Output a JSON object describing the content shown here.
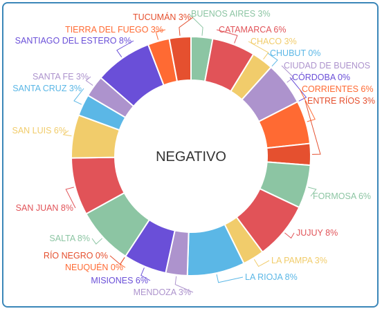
{
  "chart_data": {
    "type": "pie",
    "style": "donut",
    "center_label": "NEGATIVO",
    "start_angle_deg": 0,
    "slices": [
      {
        "name": "BUENOS AIRES",
        "value": 3,
        "label": "BUENOS AIRES 3%",
        "color": "#8cc5a3"
      },
      {
        "name": "CATAMARCA",
        "value": 6,
        "label": "CATAMARCA 6%",
        "color": "#e15358"
      },
      {
        "name": "CHACO",
        "value": 3,
        "label": "CHACO 3%",
        "color": "#f1cc6b"
      },
      {
        "name": "CHUBUT",
        "value": 0,
        "label": "CHUBUT 0%",
        "color": "#5bb7e6"
      },
      {
        "name": "CIUDAD DE BUENOS",
        "value": 6,
        "label": "CIUDAD DE BUENOS",
        "color": "#ad93cd"
      },
      {
        "name": "CÓRDOBA",
        "value": 0,
        "label": "CÓRDOBA 0%",
        "color": "#6a4fd8"
      },
      {
        "name": "CORRIENTES",
        "value": 6,
        "label": "CORRIENTES 6%",
        "color": "#ff6a33"
      },
      {
        "name": "ENTRE RÍOS",
        "value": 3,
        "label": "ENTRE RÍOS 3%",
        "color": "#e5502f"
      },
      {
        "name": "FORMOSA",
        "value": 6,
        "label": "FORMOSA 6%",
        "color": "#8cc5a3"
      },
      {
        "name": "JUJUY",
        "value": 8,
        "label": "JUJUY 8%",
        "color": "#e15358"
      },
      {
        "name": "LA PAMPA",
        "value": 3,
        "label": "LA PAMPA 3%",
        "color": "#f1cc6b"
      },
      {
        "name": "LA RIOJA",
        "value": 8,
        "label": "LA RIOJA 8%",
        "color": "#5bb7e6"
      },
      {
        "name": "MENDOZA",
        "value": 3,
        "label": "MENDOZA 3%",
        "color": "#ad93cd"
      },
      {
        "name": "MISIONES",
        "value": 6,
        "label": "MISIONES 6%",
        "color": "#6a4fd8"
      },
      {
        "name": "NEUQUÉN",
        "value": 0,
        "label": "NEUQUÉN 0%",
        "color": "#ff6a33"
      },
      {
        "name": "RÍO NEGRO",
        "value": 0,
        "label": "RÍO NEGRO 0%",
        "color": "#e5502f"
      },
      {
        "name": "SALTA",
        "value": 8,
        "label": "SALTA 8%",
        "color": "#8cc5a3"
      },
      {
        "name": "SAN JUAN",
        "value": 8,
        "label": "SAN JUAN 8%",
        "color": "#e15358"
      },
      {
        "name": "SAN LUIS",
        "value": 6,
        "label": "SAN LUIS 6%",
        "color": "#f1cc6b"
      },
      {
        "name": "SANTA CRUZ",
        "value": 3,
        "label": "SANTA CRUZ 3%",
        "color": "#5bb7e6"
      },
      {
        "name": "SANTA FE",
        "value": 3,
        "label": "SANTA FE 3%",
        "color": "#ad93cd"
      },
      {
        "name": "SANTIAGO DEL ESTERO",
        "value": 8,
        "label": "SANTIAGO DEL ESTERO 8%",
        "color": "#6a4fd8"
      },
      {
        "name": "TIERRA DEL FUEGO",
        "value": 3,
        "label": "TIERRA DEL FUEGO 3%",
        "color": "#ff6a33"
      },
      {
        "name": "TUCUMÁN",
        "value": 3,
        "label": "TUCUMÁN 3%",
        "color": "#e5502f"
      }
    ]
  }
}
